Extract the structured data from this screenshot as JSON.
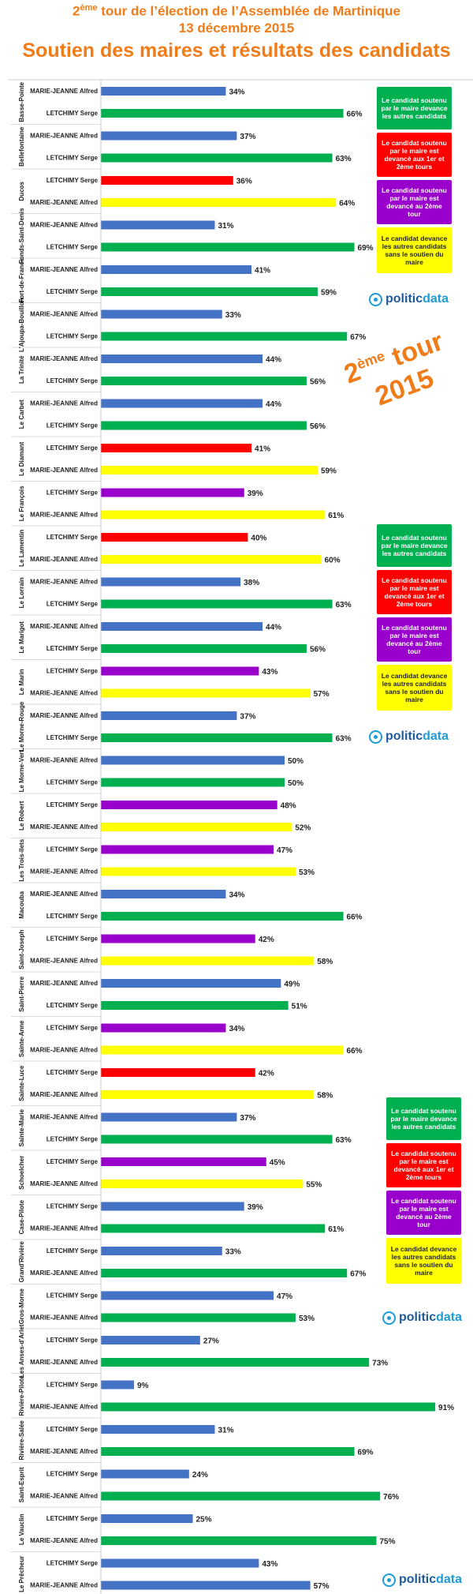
{
  "header": {
    "line1_sup": "ème",
    "line1_pre": "2",
    "line1_post": " tour de l’élection de l’Assemblée de Martinique",
    "line2": "13 décembre 2015",
    "line3": "Soutien des maires et résultats des candidats"
  },
  "overlay": {
    "tour_pre": "2",
    "tour_sup": "ème",
    "tour_post": " tour",
    "tour_year": "2015"
  },
  "legend": [
    {
      "text": "Le candidat soutenu par le maire devance les autres candidats",
      "color": "#00b050"
    },
    {
      "text": "Le candidat soutenu par le maire est devancé aux 1er et 2ème tours",
      "color": "#ff0000"
    },
    {
      "text": "Le candidat soutenu par le maire est devancé au 2ème tour",
      "color": "#9900cc"
    },
    {
      "text": "Le candidat devance les autres candidats sans le soutien du maire",
      "color": "#ffff00"
    }
  ],
  "brand": {
    "part1": "politic",
    "part2": "data"
  },
  "colors": {
    "blue": "#4472c4",
    "green": "#00b050",
    "red": "#ff0000",
    "purple": "#9900cc",
    "yellow": "#ffff00"
  },
  "chart_data": {
    "type": "bar",
    "orientation": "horizontal",
    "value_unit": "%",
    "xlim": [
      0,
      100
    ],
    "groups": [
      {
        "commune": "Basse-Pointe",
        "bars": [
          {
            "candidate": "MARIE-JEANNE Alfred",
            "value": 34,
            "color": "blue"
          },
          {
            "candidate": "LETCHIMY Serge",
            "value": 66,
            "color": "green"
          }
        ]
      },
      {
        "commune": "Bellefontaine",
        "bars": [
          {
            "candidate": "MARIE-JEANNE Alfred",
            "value": 37,
            "color": "blue"
          },
          {
            "candidate": "LETCHIMY Serge",
            "value": 63,
            "color": "green"
          }
        ]
      },
      {
        "commune": "Ducos",
        "bars": [
          {
            "candidate": "LETCHIMY Serge",
            "value": 36,
            "color": "red"
          },
          {
            "candidate": "MARIE-JEANNE Alfred",
            "value": 64,
            "color": "yellow"
          }
        ]
      },
      {
        "commune": "Fonds-Saint-Denis",
        "bars": [
          {
            "candidate": "MARIE-JEANNE Alfred",
            "value": 31,
            "color": "blue"
          },
          {
            "candidate": "LETCHIMY Serge",
            "value": 69,
            "color": "green"
          }
        ]
      },
      {
        "commune": "Fort-de-France",
        "bars": [
          {
            "candidate": "MARIE-JEANNE Alfred",
            "value": 41,
            "color": "blue"
          },
          {
            "candidate": "LETCHIMY Serge",
            "value": 59,
            "color": "green"
          }
        ]
      },
      {
        "commune": "L'Ajoupa-Bouillon",
        "bars": [
          {
            "candidate": "MARIE-JEANNE Alfred",
            "value": 33,
            "color": "blue"
          },
          {
            "candidate": "LETCHIMY Serge",
            "value": 67,
            "color": "green"
          }
        ]
      },
      {
        "commune": "La Trinité",
        "bars": [
          {
            "candidate": "MARIE-JEANNE Alfred",
            "value": 44,
            "color": "blue"
          },
          {
            "candidate": "LETCHIMY Serge",
            "value": 56,
            "color": "green"
          }
        ]
      },
      {
        "commune": "Le Carbet",
        "bars": [
          {
            "candidate": "MARIE-JEANNE Alfred",
            "value": 44,
            "color": "blue"
          },
          {
            "candidate": "LETCHIMY Serge",
            "value": 56,
            "color": "green"
          }
        ]
      },
      {
        "commune": "Le Diamant",
        "bars": [
          {
            "candidate": "LETCHIMY Serge",
            "value": 41,
            "color": "red"
          },
          {
            "candidate": "MARIE-JEANNE Alfred",
            "value": 59,
            "color": "yellow"
          }
        ]
      },
      {
        "commune": "Le François",
        "bars": [
          {
            "candidate": "LETCHIMY Serge",
            "value": 39,
            "color": "purple"
          },
          {
            "candidate": "MARIE-JEANNE Alfred",
            "value": 61,
            "color": "yellow"
          }
        ]
      },
      {
        "commune": "Le Lamentin",
        "bars": [
          {
            "candidate": "LETCHIMY Serge",
            "value": 40,
            "color": "red"
          },
          {
            "candidate": "MARIE-JEANNE Alfred",
            "value": 60,
            "color": "yellow"
          }
        ]
      },
      {
        "commune": "Le Lorrain",
        "bars": [
          {
            "candidate": "MARIE-JEANNE Alfred",
            "value": 38,
            "color": "blue"
          },
          {
            "candidate": "LETCHIMY Serge",
            "value": 63,
            "color": "green"
          }
        ]
      },
      {
        "commune": "Le Marigot",
        "bars": [
          {
            "candidate": "MARIE-JEANNE Alfred",
            "value": 44,
            "color": "blue"
          },
          {
            "candidate": "LETCHIMY Serge",
            "value": 56,
            "color": "green"
          }
        ]
      },
      {
        "commune": "Le Marin",
        "bars": [
          {
            "candidate": "LETCHIMY Serge",
            "value": 43,
            "color": "purple"
          },
          {
            "candidate": "MARIE-JEANNE Alfred",
            "value": 57,
            "color": "yellow"
          }
        ]
      },
      {
        "commune": "Le Morne-Rouge",
        "bars": [
          {
            "candidate": "MARIE-JEANNE Alfred",
            "value": 37,
            "color": "blue"
          },
          {
            "candidate": "LETCHIMY Serge",
            "value": 63,
            "color": "green"
          }
        ]
      },
      {
        "commune": "Le Morne-Vert",
        "bars": [
          {
            "candidate": "MARIE-JEANNE Alfred",
            "value": 50,
            "color": "blue"
          },
          {
            "candidate": "LETCHIMY Serge",
            "value": 50,
            "color": "green"
          }
        ]
      },
      {
        "commune": "Le Robert",
        "bars": [
          {
            "candidate": "LETCHIMY Serge",
            "value": 48,
            "color": "purple"
          },
          {
            "candidate": "MARIE-JEANNE Alfred",
            "value": 52,
            "color": "yellow"
          }
        ]
      },
      {
        "commune": "Les Trois-Ilets",
        "bars": [
          {
            "candidate": "LETCHIMY Serge",
            "value": 47,
            "color": "purple"
          },
          {
            "candidate": "MARIE-JEANNE Alfred",
            "value": 53,
            "color": "yellow"
          }
        ]
      },
      {
        "commune": "Macouba",
        "bars": [
          {
            "candidate": "MARIE-JEANNE Alfred",
            "value": 34,
            "color": "blue"
          },
          {
            "candidate": "LETCHIMY Serge",
            "value": 66,
            "color": "green"
          }
        ]
      },
      {
        "commune": "Saint-Joseph",
        "bars": [
          {
            "candidate": "LETCHIMY Serge",
            "value": 42,
            "color": "purple"
          },
          {
            "candidate": "MARIE-JEANNE Alfred",
            "value": 58,
            "color": "yellow"
          }
        ]
      },
      {
        "commune": "Saint-Pierre",
        "bars": [
          {
            "candidate": "MARIE-JEANNE Alfred",
            "value": 49,
            "color": "blue"
          },
          {
            "candidate": "LETCHIMY Serge",
            "value": 51,
            "color": "green"
          }
        ]
      },
      {
        "commune": "Sainte-Anne",
        "bars": [
          {
            "candidate": "LETCHIMY Serge",
            "value": 34,
            "color": "purple"
          },
          {
            "candidate": "MARIE-JEANNE Alfred",
            "value": 66,
            "color": "yellow"
          }
        ]
      },
      {
        "commune": "Sainte-Luce",
        "bars": [
          {
            "candidate": "LETCHIMY Serge",
            "value": 42,
            "color": "red"
          },
          {
            "candidate": "MARIE-JEANNE Alfred",
            "value": 58,
            "color": "yellow"
          }
        ]
      },
      {
        "commune": "Sainte-Marie",
        "bars": [
          {
            "candidate": "MARIE-JEANNE Alfred",
            "value": 37,
            "color": "blue"
          },
          {
            "candidate": "LETCHIMY Serge",
            "value": 63,
            "color": "green"
          }
        ]
      },
      {
        "commune": "Schoelcher",
        "bars": [
          {
            "candidate": "LETCHIMY Serge",
            "value": 45,
            "color": "purple"
          },
          {
            "candidate": "MARIE-JEANNE Alfred",
            "value": 55,
            "color": "yellow"
          }
        ]
      },
      {
        "commune": "Case-Pilote",
        "bars": [
          {
            "candidate": "LETCHIMY Serge",
            "value": 39,
            "color": "blue"
          },
          {
            "candidate": "MARIE-JEANNE Alfred",
            "value": 61,
            "color": "green"
          }
        ]
      },
      {
        "commune": "Grand'Rivière",
        "bars": [
          {
            "candidate": "LETCHIMY Serge",
            "value": 33,
            "color": "blue"
          },
          {
            "candidate": "MARIE-JEANNE Alfred",
            "value": 67,
            "color": "green"
          }
        ]
      },
      {
        "commune": "Gros-Morne",
        "bars": [
          {
            "candidate": "LETCHIMY Serge",
            "value": 47,
            "color": "blue"
          },
          {
            "candidate": "MARIE-JEANNE Alfred",
            "value": 53,
            "color": "green"
          }
        ]
      },
      {
        "commune": "Les Anses-d'Arlet",
        "bars": [
          {
            "candidate": "LETCHIMY Serge",
            "value": 27,
            "color": "blue"
          },
          {
            "candidate": "MARIE-JEANNE Alfred",
            "value": 73,
            "color": "green"
          }
        ]
      },
      {
        "commune": "Rivière-Pilote",
        "bars": [
          {
            "candidate": "LETCHIMY Serge",
            "value": 9,
            "color": "blue"
          },
          {
            "candidate": "MARIE-JEANNE Alfred",
            "value": 91,
            "color": "green"
          }
        ]
      },
      {
        "commune": "Rivière-Salée",
        "bars": [
          {
            "candidate": "LETCHIMY Serge",
            "value": 31,
            "color": "blue"
          },
          {
            "candidate": "MARIE-JEANNE Alfred",
            "value": 69,
            "color": "green"
          }
        ]
      },
      {
        "commune": "Saint-Esprit",
        "bars": [
          {
            "candidate": "LETCHIMY Serge",
            "value": 24,
            "color": "blue"
          },
          {
            "candidate": "MARIE-JEANNE Alfred",
            "value": 76,
            "color": "green"
          }
        ]
      },
      {
        "commune": "Le Vauclin",
        "bars": [
          {
            "candidate": "LETCHIMY Serge",
            "value": 25,
            "color": "blue"
          },
          {
            "candidate": "MARIE-JEANNE Alfred",
            "value": 75,
            "color": "green"
          }
        ]
      },
      {
        "commune": "Le Prêcheur",
        "bars": [
          {
            "candidate": "LETCHIMY Serge",
            "value": 43,
            "color": "blue"
          },
          {
            "candidate": "MARIE-JEANNE Alfred",
            "value": 57,
            "color": "blue"
          }
        ]
      }
    ]
  }
}
